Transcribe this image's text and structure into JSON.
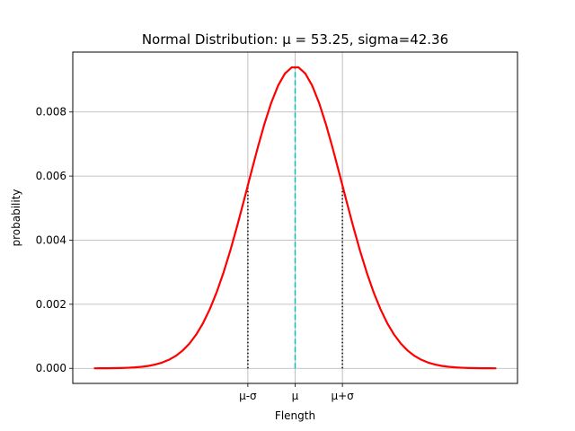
{
  "chart_data": {
    "type": "line",
    "title": "Normal Distribution: μ = 53.25, sigma=42.36",
    "xlabel": "Flength",
    "ylabel": "probability",
    "mu": 53.25,
    "sigma": 42.36,
    "xlim": [
      -146.0,
      252.5
    ],
    "ylim": [
      -0.00047,
      0.00987
    ],
    "grid": true,
    "x_ticks": [
      {
        "value": 10.89,
        "label": "μ-σ"
      },
      {
        "value": 53.25,
        "label": "μ"
      },
      {
        "value": 95.61,
        "label": "μ+σ"
      }
    ],
    "y_ticks": [
      {
        "value": 0.0,
        "label": "0.000"
      },
      {
        "value": 0.002,
        "label": "0.002"
      },
      {
        "value": 0.004,
        "label": "0.004"
      },
      {
        "value": 0.006,
        "label": "0.006"
      },
      {
        "value": 0.008,
        "label": "0.008"
      }
    ],
    "curve": {
      "x_min": -127.0,
      "x_max": 233.5,
      "num_points": 60,
      "color": "#ff0000"
    },
    "mean_line": {
      "x": 53.25,
      "color": "#00bfbf"
    },
    "sigma_lines": {
      "x": [
        10.89,
        95.61
      ],
      "color": "#000000"
    },
    "colors": {
      "grid": "#b0b0b0",
      "axes": "#000000"
    }
  }
}
